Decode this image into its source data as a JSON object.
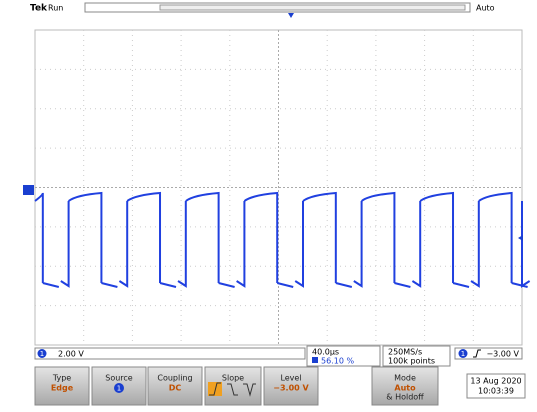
{
  "header": {
    "brand": "Tek",
    "state": "Run",
    "mode": "Auto"
  },
  "channel": {
    "number": "1",
    "scale": "2.00 V"
  },
  "timebase": {
    "scale": "40.0µs",
    "position": "56.10 %"
  },
  "acquisition": {
    "rate": "250MS/s",
    "points": "100k points"
  },
  "trigger": {
    "source": "1",
    "level": "−3.00 V"
  },
  "menu": {
    "items": [
      {
        "label": "Type",
        "value": "Edge"
      },
      {
        "label": "Source",
        "value": "1"
      },
      {
        "label": "Coupling",
        "value": "DC"
      },
      {
        "label": "Slope"
      },
      {
        "label": "Level",
        "value": "−3.00 V"
      },
      {
        "label": "Mode",
        "value": "Auto",
        "extra": "& Holdoff"
      }
    ]
  },
  "date": "13 Aug 2020",
  "time": "10:03:39"
}
